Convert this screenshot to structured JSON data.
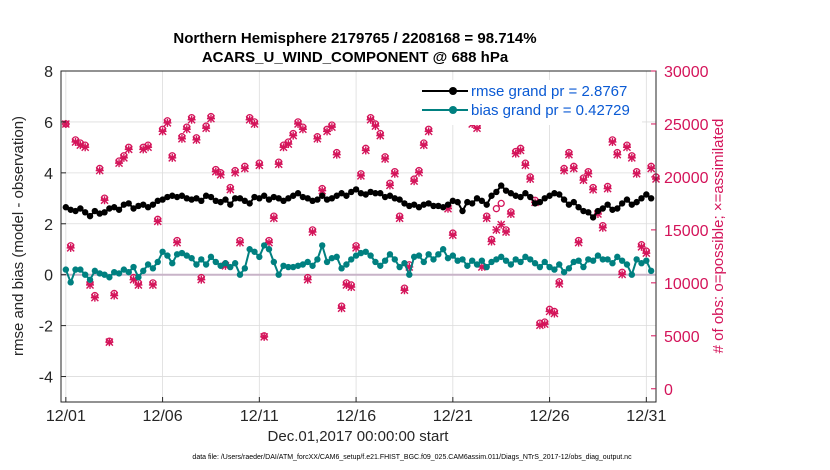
{
  "chart_data": {
    "type": "line",
    "title_line1": "Northern Hemisphere 2179765 / 2208168 = 98.714%",
    "title_line2": "ACARS_U_WIND_COMPONENT @ 688 hPa",
    "xlabel": "Dec.01,2017 00:00:00 start",
    "ylabel_left": "rmse and bias (model - observation)",
    "ylabel_right": "# of obs: o=possible; ×=assimilated",
    "footnote": "data file: /Users/raeder/DAI/ATM_forcXX/CAM6_setup/f.e21.FHIST_BGC.f09_025.CAM6assim.011/Diags_NTrS_2017-12/obs_diag_output.nc",
    "xlim": [
      0.75,
      31.5
    ],
    "ylim_left": [
      -5,
      8
    ],
    "ylim_right": [
      -1250,
      30000
    ],
    "x_ticks": [
      1,
      6,
      11,
      16,
      21,
      26,
      31
    ],
    "x_tick_labels": [
      "12/01",
      "12/06",
      "12/11",
      "12/16",
      "12/21",
      "12/26",
      "12/31"
    ],
    "y_left_ticks": [
      -4,
      -2,
      0,
      2,
      4,
      6,
      8
    ],
    "y_right_ticks": [
      0,
      5000,
      10000,
      15000,
      20000,
      25000,
      30000
    ],
    "legend": [
      {
        "name": "rmse grand pr = 2.8767",
        "color": "#000000"
      },
      {
        "name": "bias grand pr = 0.42729",
        "color": "#008080"
      }
    ],
    "colors": {
      "rmse": "#000000",
      "bias": "#008080",
      "obs": "#d4145a",
      "legend_text": "#0a5ad4",
      "zero_line": "#c8b4c8"
    },
    "x": [
      1.0,
      1.25,
      1.5,
      1.75,
      2.0,
      2.25,
      2.5,
      2.75,
      3.0,
      3.25,
      3.5,
      3.75,
      4.0,
      4.25,
      4.5,
      4.75,
      5.0,
      5.25,
      5.5,
      5.75,
      6.0,
      6.25,
      6.5,
      6.75,
      7.0,
      7.25,
      7.5,
      7.75,
      8.0,
      8.25,
      8.5,
      8.75,
      9.0,
      9.25,
      9.5,
      9.75,
      10.0,
      10.25,
      10.5,
      10.75,
      11.0,
      11.25,
      11.5,
      11.75,
      12.0,
      12.25,
      12.5,
      12.75,
      13.0,
      13.25,
      13.5,
      13.75,
      14.0,
      14.25,
      14.5,
      14.75,
      15.0,
      15.25,
      15.5,
      15.75,
      16.0,
      16.25,
      16.5,
      16.75,
      17.0,
      17.25,
      17.5,
      17.75,
      18.0,
      18.25,
      18.5,
      18.75,
      19.0,
      19.25,
      19.5,
      19.75,
      20.0,
      20.25,
      20.5,
      20.75,
      21.0,
      21.25,
      21.5,
      21.75,
      22.0,
      22.25,
      22.5,
      22.75,
      23.0,
      23.25,
      23.5,
      23.75,
      24.0,
      24.25,
      24.5,
      24.75,
      25.0,
      25.25,
      25.5,
      25.75,
      26.0,
      26.25,
      26.5,
      26.75,
      27.0,
      27.25,
      27.5,
      27.75,
      28.0,
      28.25,
      28.5,
      28.75,
      29.0,
      29.25,
      29.5,
      29.75,
      30.0,
      30.25,
      30.5,
      30.75,
      31.0,
      31.25
    ],
    "rmse": [
      2.65,
      2.55,
      2.5,
      2.6,
      2.45,
      2.3,
      2.5,
      2.4,
      2.45,
      2.6,
      2.65,
      2.55,
      2.75,
      2.8,
      2.6,
      2.7,
      2.75,
      2.65,
      2.75,
      2.9,
      2.95,
      3.05,
      3.1,
      3.05,
      3.1,
      3.0,
      2.95,
      3.0,
      2.9,
      3.1,
      3.05,
      2.9,
      2.85,
      2.95,
      2.75,
      3.0,
      3.0,
      2.9,
      2.8,
      3.05,
      3.0,
      3.1,
      2.95,
      3.05,
      3.0,
      2.9,
      3.0,
      3.1,
      3.2,
      3.05,
      3.0,
      2.9,
      2.95,
      3.1,
      2.95,
      3.0,
      3.1,
      3.2,
      3.1,
      3.25,
      3.35,
      3.2,
      3.15,
      3.25,
      3.2,
      3.2,
      3.05,
      3.1,
      3.0,
      2.95,
      2.8,
      2.7,
      2.75,
      2.65,
      2.75,
      2.8,
      2.7,
      2.7,
      2.65,
      2.75,
      2.9,
      2.85,
      2.5,
      2.85,
      2.8,
      3.0,
      2.9,
      2.75,
      3.1,
      3.25,
      3.5,
      3.3,
      3.2,
      3.1,
      3.05,
      3.2,
      3.05,
      2.8,
      2.85,
      3.0,
      3.1,
      3.2,
      3.15,
      2.95,
      2.75,
      2.85,
      2.65,
      2.5,
      2.45,
      2.25,
      2.5,
      2.6,
      2.75,
      2.55,
      2.6,
      2.8,
      2.95,
      2.75,
      2.85,
      3.0,
      3.15,
      3.0,
      3.1,
      2.9,
      3.3,
      3.05
    ],
    "bias": [
      0.2,
      -0.3,
      0.2,
      0.2,
      0.0,
      -0.2,
      0.15,
      0.05,
      0.0,
      -0.1,
      0.1,
      0.05,
      0.2,
      0.1,
      0.3,
      -0.1,
      0.15,
      0.4,
      0.25,
      0.5,
      0.9,
      0.75,
      0.45,
      0.8,
      0.85,
      0.75,
      0.65,
      0.4,
      0.6,
      0.4,
      0.7,
      0.5,
      0.35,
      0.45,
      0.3,
      0.45,
      0.0,
      0.25,
      1.0,
      0.9,
      0.7,
      1.15,
      1.0,
      0.5,
      0.0,
      0.35,
      0.3,
      0.3,
      0.35,
      0.4,
      0.5,
      0.35,
      0.6,
      1.15,
      0.5,
      0.65,
      0.7,
      0.25,
      0.4,
      0.6,
      0.75,
      0.85,
      0.9,
      0.75,
      0.5,
      0.35,
      0.55,
      0.8,
      0.6,
      0.3,
      0.45,
      0.0,
      0.7,
      0.75,
      0.5,
      0.8,
      0.6,
      0.8,
      1.0,
      0.65,
      0.75,
      0.55,
      0.6,
      0.35,
      0.55,
      0.4,
      0.55,
      0.3,
      0.5,
      0.6,
      0.7,
      0.55,
      0.4,
      0.6,
      0.5,
      0.7,
      0.6,
      0.45,
      0.3,
      0.5,
      0.3,
      0.2,
      0.4,
      0.1,
      0.25,
      0.5,
      0.55,
      0.3,
      0.6,
      0.55,
      0.75,
      0.6,
      0.6,
      0.45,
      0.7,
      0.55,
      0.4,
      0.0,
      0.6,
      0.45,
      0.55,
      0.15,
      0.3,
      -0.15,
      0.55,
      0.1
    ],
    "obs_x": [
      1.0,
      1.25,
      1.5,
      1.75,
      2.0,
      2.25,
      2.5,
      2.75,
      3.0,
      3.25,
      3.5,
      3.75,
      4.0,
      4.25,
      4.5,
      4.75,
      5.0,
      5.25,
      5.5,
      5.75,
      6.0,
      6.25,
      6.5,
      6.75,
      7.0,
      7.25,
      7.5,
      7.75,
      8.0,
      8.25,
      8.5,
      8.75,
      9.0,
      9.25,
      9.5,
      9.75,
      10.0,
      10.25,
      10.5,
      10.75,
      11.0,
      11.25,
      11.5,
      11.75,
      12.0,
      12.25,
      12.5,
      12.75,
      13.0,
      13.25,
      13.5,
      13.75,
      14.0,
      14.25,
      14.5,
      14.75,
      15.0,
      15.25,
      15.5,
      15.75,
      16.0,
      16.25,
      16.5,
      16.75,
      17.0,
      17.25,
      17.5,
      17.75,
      18.0,
      18.25,
      18.5,
      18.75,
      19.0,
      19.25,
      19.5,
      19.75,
      20.0,
      20.25,
      20.5,
      20.75,
      21.0,
      21.25,
      21.5,
      21.75,
      22.0,
      22.25,
      22.5,
      22.75,
      23.0,
      23.25,
      23.5,
      23.75,
      24.0,
      24.25,
      24.5,
      24.75,
      25.0,
      25.25,
      25.5,
      25.75,
      26.0,
      26.25,
      26.5,
      26.75,
      27.0,
      27.25,
      27.5,
      27.75,
      28.0,
      28.25,
      28.5,
      28.75,
      29.0,
      29.25,
      29.5,
      29.75,
      30.0,
      30.25,
      30.5,
      30.75,
      31.0,
      31.25,
      31.5
    ],
    "obs_possible": [
      25000,
      13500,
      23500,
      23200,
      23000,
      10000,
      8800,
      20800,
      18000,
      4500,
      9000,
      21500,
      22000,
      22800,
      10500,
      10000,
      22800,
      23000,
      10000,
      16000,
      24500,
      25300,
      22000,
      14000,
      23800,
      24700,
      25600,
      23700,
      10500,
      24800,
      25700,
      20700,
      20400,
      11800,
      19000,
      20600,
      14000,
      21000,
      25600,
      25200,
      21300,
      5000,
      14000,
      16300,
      21400,
      23000,
      23300,
      24100,
      25200,
      24700,
      10500,
      15000,
      23800,
      18900,
      24500,
      24900,
      22300,
      7800,
      10000,
      9800,
      13500,
      20300,
      22700,
      25600,
      25000,
      24100,
      21900,
      19400,
      20500,
      16300,
      9500,
      11700,
      19800,
      20600,
      23200,
      24500,
      25500,
      26000,
      26300,
      17200,
      14700,
      25600,
      26800,
      27600,
      25800,
      24800,
      11700,
      16300,
      14100,
      17000,
      17500,
      15000,
      16700,
      22400,
      22700,
      21300,
      20000,
      17800,
      6200,
      6300,
      7500,
      7300,
      10100,
      20800,
      22300,
      21000,
      14000,
      19900,
      20500,
      19000,
      16700,
      15400,
      19100,
      23500,
      22300,
      11000,
      23000,
      22000,
      20500,
      13600,
      13000,
      21000,
      20000,
      10800,
      21000,
      21500,
      0
    ],
    "obs_assimilated": [
      25000,
      13300,
      23300,
      23000,
      22800,
      9800,
      8600,
      20600,
      17800,
      4400,
      8800,
      21300,
      21800,
      22600,
      10300,
      9800,
      22600,
      22800,
      9800,
      15800,
      24300,
      25100,
      21800,
      13800,
      23600,
      24500,
      25400,
      23500,
      10300,
      24600,
      25500,
      20500,
      20200,
      11600,
      18800,
      20400,
      13800,
      20800,
      25400,
      25000,
      21100,
      4900,
      13800,
      16100,
      21200,
      22800,
      23100,
      23900,
      25000,
      24500,
      10300,
      14800,
      23600,
      18700,
      24300,
      24700,
      22100,
      7600,
      9800,
      9600,
      13300,
      20100,
      22500,
      25400,
      24800,
      23900,
      21700,
      19200,
      20300,
      16100,
      9300,
      11500,
      19600,
      20400,
      23000,
      24300,
      25300,
      25800,
      26100,
      17000,
      14500,
      25400,
      25800,
      25700,
      25000,
      24600,
      11500,
      16100,
      13900,
      15000,
      15500,
      14800,
      16500,
      22200,
      22500,
      21100,
      19800,
      17600,
      6000,
      6100,
      7300,
      7100,
      9900,
      20600,
      22100,
      20800,
      13800,
      19700,
      20300,
      18800,
      16500,
      15200,
      18900,
      23300,
      22100,
      10800,
      22800,
      21800,
      20300,
      13400,
      12800,
      20800,
      19800,
      10600,
      20800,
      21300,
      0
    ]
  }
}
